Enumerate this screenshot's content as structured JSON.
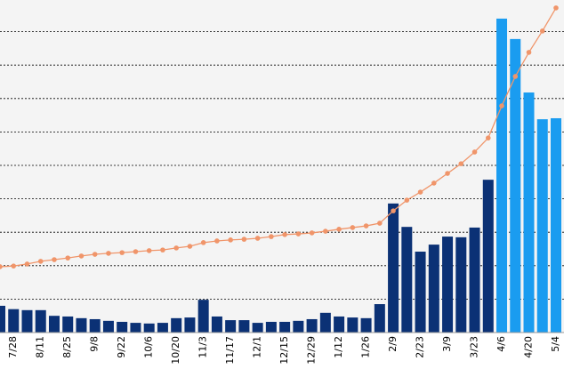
{
  "chart_data": {
    "type": "bar",
    "categories": [
      null,
      "7/28",
      null,
      "8/11",
      null,
      "8/25",
      null,
      "9/8",
      null,
      "9/22",
      null,
      "10/6",
      null,
      "10/20",
      null,
      "11/3",
      null,
      "11/17",
      null,
      "12/1",
      null,
      "12/15",
      null,
      "12/29",
      null,
      "1/12",
      null,
      "1/26",
      null,
      "2/9",
      null,
      "2/23",
      null,
      "3/9",
      null,
      "3/23",
      null,
      "4/6",
      null,
      "4/20",
      null,
      "5/4"
    ],
    "series": [
      {
        "type": "bar",
        "values": [
          0.8,
          0.7,
          0.67,
          0.67,
          0.5,
          0.48,
          0.43,
          0.4,
          0.35,
          0.32,
          0.29,
          0.27,
          0.29,
          0.43,
          0.45,
          0.98,
          0.48,
          0.37,
          0.37,
          0.29,
          0.32,
          0.32,
          0.35,
          0.4,
          0.59,
          0.48,
          0.45,
          0.43,
          0.85,
          3.86,
          3.16,
          2.42,
          2.63,
          2.87,
          2.85,
          3.14,
          4.57,
          9.39,
          8.78,
          7.18,
          6.38,
          6.41
        ],
        "colors": [
          "#0b3175",
          "#0b3175",
          "#0b3175",
          "#0b3175",
          "#0b3175",
          "#0b3175",
          "#0b3175",
          "#0b3175",
          "#0b3175",
          "#0b3175",
          "#0b3175",
          "#0b3175",
          "#0b3175",
          "#0b3175",
          "#0b3175",
          "#0b3175",
          "#0b3175",
          "#0b3175",
          "#0b3175",
          "#0b3175",
          "#0b3175",
          "#0b3175",
          "#0b3175",
          "#0b3175",
          "#0b3175",
          "#0b3175",
          "#0b3175",
          "#0b3175",
          "#0b3175",
          "#0b3175",
          "#0b3175",
          "#0b3175",
          "#0b3175",
          "#0b3175",
          "#0b3175",
          "#0b3175",
          "#0b3175",
          "#1a9cf0",
          "#1a9cf0",
          "#1a9cf0",
          "#1a9cf0",
          "#1a9cf0"
        ]
      },
      {
        "type": "line",
        "color": "#f0956a",
        "values": [
          1.97,
          1.99,
          2.05,
          2.13,
          2.18,
          2.23,
          2.29,
          2.34,
          2.37,
          2.39,
          2.42,
          2.45,
          2.47,
          2.53,
          2.58,
          2.69,
          2.74,
          2.77,
          2.79,
          2.82,
          2.87,
          2.93,
          2.95,
          2.98,
          3.03,
          3.09,
          3.14,
          3.19,
          3.27,
          3.64,
          3.96,
          4.2,
          4.47,
          4.76,
          5.05,
          5.4,
          5.82,
          6.78,
          7.66,
          8.38,
          9.02,
          9.71
        ]
      }
    ],
    "ylim": [
      0,
      10
    ],
    "yticks": [
      1,
      2,
      3,
      4,
      5,
      6,
      7,
      8,
      9
    ],
    "grid": true
  }
}
